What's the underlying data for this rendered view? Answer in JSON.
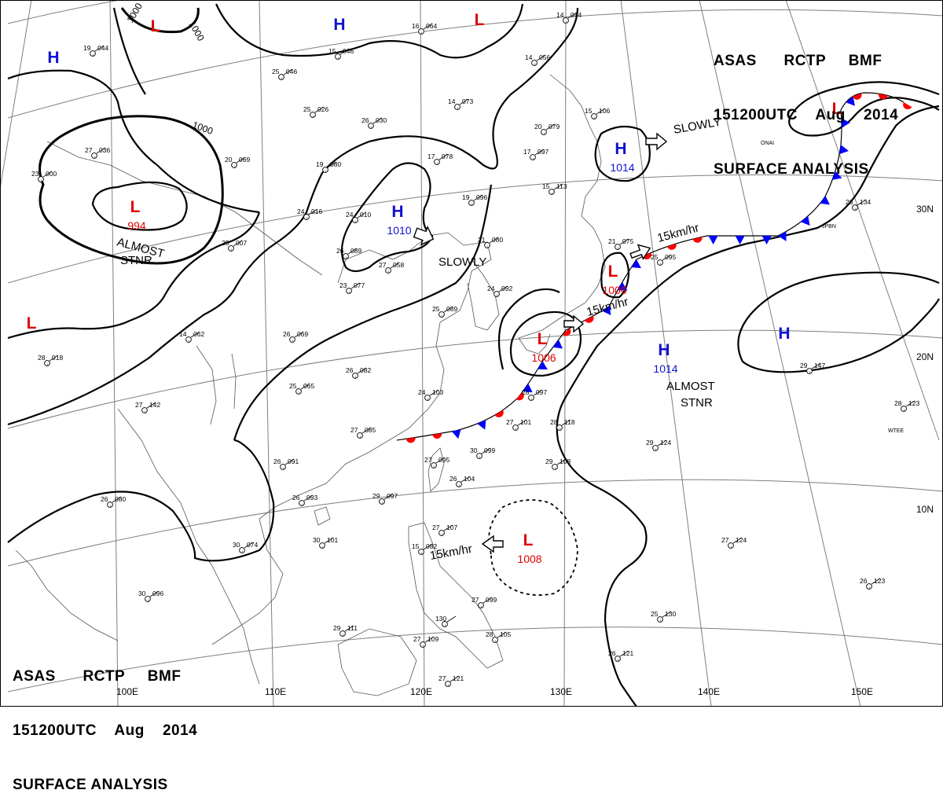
{
  "header": {
    "line1": [
      "ASAS",
      "RCTP",
      "BMF"
    ],
    "line2": [
      "151200UTC",
      "Aug",
      "2014"
    ],
    "line3": "SURFACE ANALYSIS"
  },
  "colors": {
    "high": "#1010d0",
    "low": "#e00000",
    "cold_front": "#0000ff",
    "warm_front": "#ff0000",
    "isobar": "#000000",
    "graticule": "#7f7f7f"
  },
  "graticule": {
    "longitudes": [
      "110E",
      "120E",
      "130E",
      "140E",
      "150E"
    ],
    "latitudes": [
      "30N",
      "20N",
      "10N"
    ],
    "extra_labels": [
      "100E"
    ]
  },
  "systems": [
    {
      "type": "L",
      "label": "L",
      "pressure": ""
    },
    {
      "type": "L",
      "label": "L",
      "pressure": ""
    },
    {
      "type": "L",
      "label": "L",
      "pressure": "994"
    },
    {
      "type": "L",
      "label": "L",
      "pressure": ""
    },
    {
      "type": "L",
      "label": "L",
      "pressure": "1006"
    },
    {
      "type": "L",
      "label": "L",
      "pressure": "1006"
    },
    {
      "type": "L",
      "label": "L",
      "pressure": ""
    },
    {
      "type": "L",
      "label": "L",
      "pressure": "1008"
    },
    {
      "type": "H",
      "label": "H",
      "pressure": ""
    },
    {
      "type": "H",
      "label": "H",
      "pressure": ""
    },
    {
      "type": "H",
      "label": "H",
      "pressure": "1010"
    },
    {
      "type": "H",
      "label": "H",
      "pressure": "1014"
    },
    {
      "type": "H",
      "label": "H",
      "pressure": "1014"
    },
    {
      "type": "H",
      "label": "H",
      "pressure": ""
    }
  ],
  "isobar_labels": [
    "1000",
    "1000",
    "1000"
  ],
  "annotations": [
    {
      "text": "SLOWLY"
    },
    {
      "text": "SLOWLY"
    },
    {
      "text": "ALMOST"
    },
    {
      "text": "STNR"
    },
    {
      "text": "ALMOST"
    },
    {
      "text": "STNR"
    },
    {
      "text": "15km/hr"
    },
    {
      "text": "15km/hr"
    },
    {
      "text": "15km/hr"
    }
  ],
  "station_ids": [
    "ONAI",
    "JPBN",
    "WTEE"
  ],
  "stations": [
    {
      "t": "19",
      "p": "044"
    },
    {
      "t": "15",
      "p": "046"
    },
    {
      "t": "16",
      "p": "064"
    },
    {
      "t": "14",
      "p": "044"
    },
    {
      "t": "25",
      "p": "046"
    },
    {
      "t": "25",
      "p": "026"
    },
    {
      "t": "14",
      "p": "056"
    },
    {
      "t": "26",
      "p": "030"
    },
    {
      "t": "14",
      "p": "073"
    },
    {
      "t": "20",
      "p": "079"
    },
    {
      "t": "15",
      "p": "106"
    },
    {
      "t": "27",
      "p": "036"
    },
    {
      "t": "20",
      "p": "069"
    },
    {
      "t": "19",
      "p": "080"
    },
    {
      "t": "17",
      "p": "078"
    },
    {
      "t": "17",
      "p": "097"
    },
    {
      "t": "23",
      "p": "000"
    },
    {
      "t": "15",
      "p": "113"
    },
    {
      "t": "19",
      "p": "096"
    },
    {
      "t": "24",
      "p": "016"
    },
    {
      "t": "24",
      "p": "010"
    },
    {
      "t": "26",
      "p": "134"
    },
    {
      "t": "25",
      "p": "007"
    },
    {
      "t": "21",
      "p": "080"
    },
    {
      "t": "21",
      "p": "075"
    },
    {
      "t": "26",
      "p": "089"
    },
    {
      "t": "27",
      "p": "058"
    },
    {
      "t": "23",
      "p": "077"
    },
    {
      "t": "24",
      "p": "092"
    },
    {
      "t": "25",
      "p": "095"
    },
    {
      "t": "25",
      "p": "089"
    },
    {
      "t": "26",
      "p": "069"
    },
    {
      "t": "14",
      "p": "062"
    },
    {
      "t": "28",
      "p": "018"
    },
    {
      "t": "26",
      "p": "082"
    },
    {
      "t": "28",
      "p": "097"
    },
    {
      "t": "25",
      "p": "065"
    },
    {
      "t": "24",
      "p": "103"
    },
    {
      "t": "28",
      "p": "118"
    },
    {
      "t": "27",
      "p": "142"
    },
    {
      "t": "27",
      "p": "085"
    },
    {
      "t": "27",
      "p": "101"
    },
    {
      "t": "29",
      "p": "147"
    },
    {
      "t": "28",
      "p": "123"
    },
    {
      "t": "26",
      "p": "091"
    },
    {
      "t": "27",
      "p": "095"
    },
    {
      "t": "30",
      "p": "099"
    },
    {
      "t": "29",
      "p": "124"
    },
    {
      "t": "26",
      "p": "104"
    },
    {
      "t": "29",
      "p": "108"
    },
    {
      "t": "26",
      "p": "080"
    },
    {
      "t": "26",
      "p": "093"
    },
    {
      "t": "29",
      "p": "097"
    },
    {
      "t": "27",
      "p": "107"
    },
    {
      "t": "30",
      "p": "101"
    },
    {
      "t": "30",
      "p": "074"
    },
    {
      "t": "27",
      "p": "124"
    },
    {
      "t": "26",
      "p": "123"
    },
    {
      "t": "29",
      "p": "111"
    },
    {
      "t": "27",
      "p": "109"
    },
    {
      "t": "27",
      "p": "099"
    },
    {
      "t": "130",
      "p": ""
    },
    {
      "t": "25",
      "p": "130"
    },
    {
      "t": "26",
      "p": "121"
    },
    {
      "t": "27",
      "p": "121"
    },
    {
      "t": "28",
      "p": "105"
    },
    {
      "t": "30",
      "p": "096"
    },
    {
      "t": "15",
      "p": "082"
    }
  ]
}
